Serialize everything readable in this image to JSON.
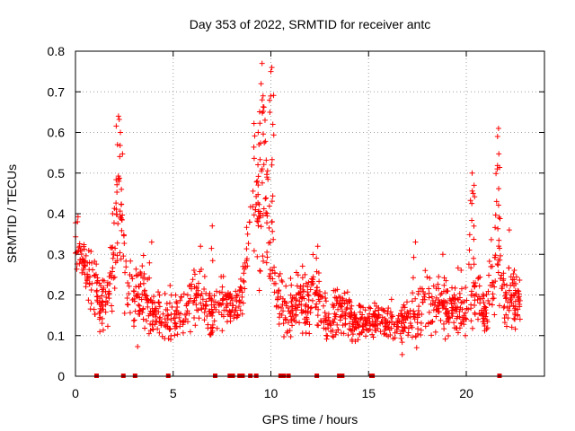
{
  "chart_data": {
    "type": "scatter",
    "title": "Day 353 of 2022, SRMTID for receiver antc",
    "xlabel": "GPS time / hours",
    "ylabel": "SRMTID / TECUs",
    "xlim": [
      0,
      24
    ],
    "ylim": [
      0,
      0.8
    ],
    "xticks": [
      "0",
      "5",
      "10",
      "15",
      "20"
    ],
    "yticks": [
      "0",
      "0.1",
      "0.2",
      "0.3",
      "0.4",
      "0.5",
      "0.6",
      "0.7",
      "0.8"
    ],
    "xtick_values": [
      0,
      5,
      10,
      15,
      20
    ],
    "ytick_values": [
      0,
      0.1,
      0.2,
      0.3,
      0.4,
      0.5,
      0.6,
      0.7,
      0.8
    ],
    "grid": true,
    "marker": "+",
    "color": "#ff0000",
    "zero_marker_color": "#e00000",
    "zero_times": [
      1.08,
      2.45,
      3.05,
      4.75,
      7.15,
      7.9,
      8.05,
      8.4,
      8.55,
      8.95,
      9.25,
      10.5,
      10.65,
      10.9,
      12.35,
      13.5,
      13.65,
      15.15,
      15.2,
      21.7
    ],
    "envelope": [
      [
        0.0,
        0.33,
        0.06
      ],
      [
        0.3,
        0.28,
        0.04
      ],
      [
        0.6,
        0.26,
        0.04
      ],
      [
        1.0,
        0.22,
        0.05
      ],
      [
        1.3,
        0.17,
        0.04
      ],
      [
        1.7,
        0.2,
        0.05
      ],
      [
        2.0,
        0.3,
        0.09
      ],
      [
        2.2,
        0.42,
        0.16
      ],
      [
        2.4,
        0.32,
        0.1
      ],
      [
        2.7,
        0.22,
        0.06
      ],
      [
        3.0,
        0.18,
        0.05
      ],
      [
        3.5,
        0.2,
        0.06
      ],
      [
        4.0,
        0.15,
        0.04
      ],
      [
        4.5,
        0.14,
        0.04
      ],
      [
        5.0,
        0.16,
        0.05
      ],
      [
        5.5,
        0.15,
        0.05
      ],
      [
        6.0,
        0.2,
        0.05
      ],
      [
        6.5,
        0.18,
        0.04
      ],
      [
        7.0,
        0.15,
        0.05
      ],
      [
        7.5,
        0.18,
        0.04
      ],
      [
        8.0,
        0.17,
        0.04
      ],
      [
        8.5,
        0.2,
        0.05
      ],
      [
        8.8,
        0.3,
        0.08
      ],
      [
        9.1,
        0.45,
        0.14
      ],
      [
        9.4,
        0.38,
        0.14
      ],
      [
        9.7,
        0.45,
        0.18
      ],
      [
        10.0,
        0.3,
        0.1
      ],
      [
        10.3,
        0.2,
        0.06
      ],
      [
        10.8,
        0.16,
        0.05
      ],
      [
        11.5,
        0.2,
        0.05
      ],
      [
        12.0,
        0.18,
        0.05
      ],
      [
        12.5,
        0.2,
        0.06
      ],
      [
        13.0,
        0.14,
        0.04
      ],
      [
        13.5,
        0.17,
        0.04
      ],
      [
        14.0,
        0.15,
        0.04
      ],
      [
        14.5,
        0.13,
        0.03
      ],
      [
        15.0,
        0.13,
        0.03
      ],
      [
        15.5,
        0.14,
        0.03
      ],
      [
        16.0,
        0.13,
        0.04
      ],
      [
        16.5,
        0.12,
        0.03
      ],
      [
        17.0,
        0.14,
        0.04
      ],
      [
        17.5,
        0.15,
        0.05
      ],
      [
        18.0,
        0.17,
        0.05
      ],
      [
        18.5,
        0.18,
        0.05
      ],
      [
        19.0,
        0.17,
        0.05
      ],
      [
        19.5,
        0.18,
        0.05
      ],
      [
        20.0,
        0.18,
        0.05
      ],
      [
        20.3,
        0.25,
        0.1
      ],
      [
        20.6,
        0.2,
        0.07
      ],
      [
        21.0,
        0.15,
        0.05
      ],
      [
        21.4,
        0.25,
        0.1
      ],
      [
        21.6,
        0.38,
        0.15
      ],
      [
        21.8,
        0.22,
        0.08
      ],
      [
        22.0,
        0.17,
        0.05
      ],
      [
        22.5,
        0.18,
        0.05
      ],
      [
        22.8,
        0.19,
        0.04
      ]
    ],
    "peaks": [
      [
        2.2,
        0.64
      ],
      [
        2.3,
        0.6
      ],
      [
        2.15,
        0.57
      ],
      [
        2.35,
        0.46
      ],
      [
        1.9,
        0.4
      ],
      [
        9.55,
        0.77
      ],
      [
        9.5,
        0.72
      ],
      [
        9.6,
        0.69
      ],
      [
        10.05,
        0.76
      ],
      [
        10.0,
        0.75
      ],
      [
        9.7,
        0.63
      ],
      [
        9.35,
        0.6
      ],
      [
        10.1,
        0.62
      ],
      [
        9.3,
        0.48
      ],
      [
        10.05,
        0.52
      ],
      [
        9.8,
        0.49
      ],
      [
        20.3,
        0.5
      ],
      [
        20.4,
        0.47
      ],
      [
        20.35,
        0.45
      ],
      [
        21.65,
        0.61
      ],
      [
        21.6,
        0.59
      ],
      [
        21.55,
        0.43
      ],
      [
        22.2,
        0.36
      ],
      [
        7.0,
        0.37
      ],
      [
        0.1,
        0.38
      ],
      [
        17.4,
        0.33
      ],
      [
        18.8,
        0.3
      ],
      [
        12.4,
        0.32
      ],
      [
        3.9,
        0.33
      ],
      [
        6.4,
        0.32
      ]
    ],
    "n_points": 1400
  }
}
